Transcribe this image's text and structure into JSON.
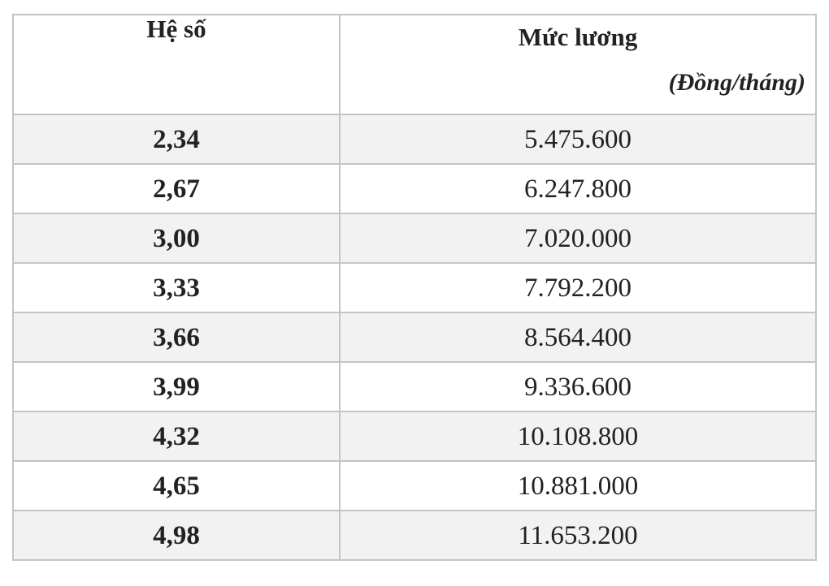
{
  "table": {
    "headers": {
      "coefficient": "Hệ số",
      "salary_title": "Mức lương",
      "salary_unit": "(Đồng/tháng)"
    },
    "rows": [
      {
        "coefficient": "2,34",
        "salary": "5.475.600"
      },
      {
        "coefficient": "2,67",
        "salary": "6.247.800"
      },
      {
        "coefficient": "3,00",
        "salary": "7.020.000"
      },
      {
        "coefficient": "3,33",
        "salary": "7.792.200"
      },
      {
        "coefficient": "3,66",
        "salary": "8.564.400"
      },
      {
        "coefficient": "3,99",
        "salary": "9.336.600"
      },
      {
        "coefficient": "4,32",
        "salary": "10.108.800"
      },
      {
        "coefficient": "4,65",
        "salary": "10.881.000"
      },
      {
        "coefficient": "4,98",
        "salary": "11.653.200"
      }
    ]
  }
}
